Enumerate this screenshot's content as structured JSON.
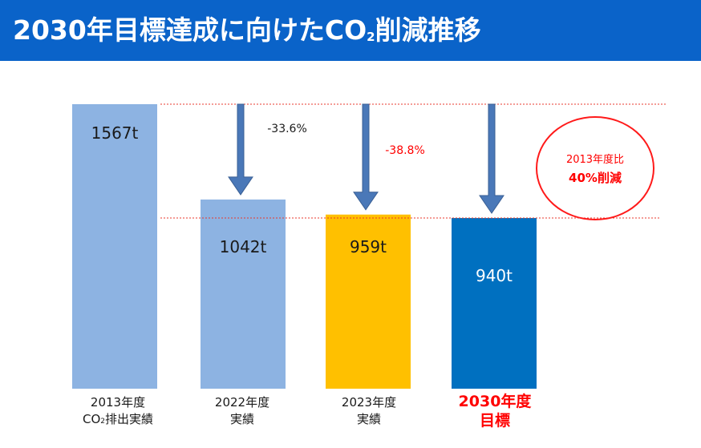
{
  "banner": {
    "title_main": "2030年目標達成に向けたCO",
    "title_sub": "2",
    "title_tail": "削減推移"
  },
  "chart_data": {
    "type": "bar",
    "title": "2030年目標達成に向けたCO2削減推移",
    "unit": "t",
    "categories": [
      "2013年度 CO2排出実績",
      "2022年度 実績",
      "2023年度 実績",
      "2030年度 目標"
    ],
    "values": [
      1567,
      1042,
      959,
      940
    ],
    "value_labels": [
      "1567t",
      "1042t",
      "959t",
      "940t"
    ],
    "bar_colors": [
      "#8db3e2",
      "#8db3e2",
      "#ffc000",
      "#0070c0"
    ],
    "value_label_colors": [
      "#1a1a1a",
      "#1a1a1a",
      "#1a1a1a",
      "#ffffff"
    ],
    "reference_lines": [
      {
        "value": 1567,
        "style": "dotted",
        "color": "#e8382d"
      },
      {
        "value": 940,
        "style": "dotted",
        "color": "#e8382d"
      }
    ],
    "annotations": [
      {
        "text": "-33.6%",
        "category": 1,
        "color": "#1a1a1a"
      },
      {
        "text": "-38.8%",
        "category": 2,
        "color": "#ff0000"
      }
    ],
    "arrow_color": "#4a78b8",
    "ylim": [
      0,
      1567
    ]
  },
  "xlabels": [
    {
      "line1": "2013年度",
      "line2_main": "CO",
      "line2_sub": "2",
      "line2_tail": "排出実績"
    },
    {
      "line1": "2022年度",
      "line2_main": "実績",
      "line2_sub": "",
      "line2_tail": ""
    },
    {
      "line1": "2023年度",
      "line2_main": "実績",
      "line2_sub": "",
      "line2_tail": ""
    },
    {
      "line1": "2030年度",
      "line2_main": "目標",
      "line2_sub": "",
      "line2_tail": ""
    }
  ],
  "badge": {
    "line1": "2013年度比",
    "line2": "40%削減",
    "color": "#ff0000"
  }
}
